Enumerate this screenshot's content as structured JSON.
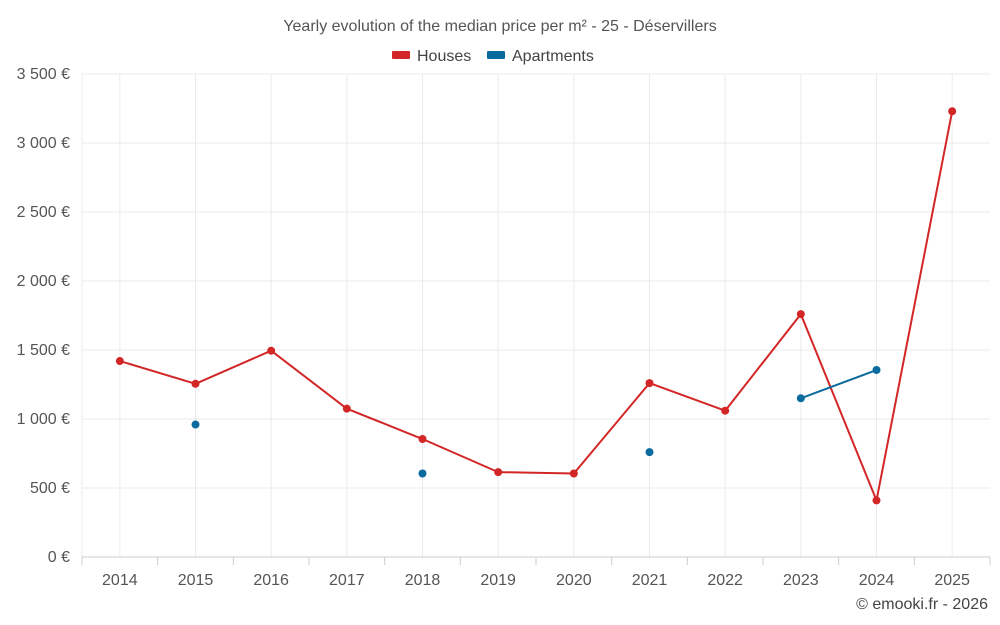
{
  "chart_data": {
    "type": "line",
    "title": "Yearly evolution of the median price per m² - 25 - Déservillers",
    "categories": [
      "2014",
      "2015",
      "2016",
      "2017",
      "2018",
      "2019",
      "2020",
      "2021",
      "2022",
      "2023",
      "2024",
      "2025"
    ],
    "series": [
      {
        "name": "Houses",
        "color": "#d32626",
        "values": [
          1420,
          1255,
          1495,
          1075,
          855,
          615,
          605,
          1260,
          1060,
          1760,
          410,
          3230
        ]
      },
      {
        "name": "Apartments",
        "color": "#0a6b9e",
        "values": [
          null,
          960,
          null,
          null,
          605,
          null,
          null,
          760,
          null,
          1150,
          1355,
          null
        ]
      }
    ],
    "y_ticks": [
      0,
      500,
      1000,
      1500,
      2000,
      2500,
      3000,
      3500
    ],
    "y_tick_labels": [
      "0 €",
      "500 €",
      "1 000 €",
      "1 500 €",
      "2 000 €",
      "2 500 €",
      "3 000 €",
      "3 500 €"
    ],
    "ylim": [
      0,
      3500
    ],
    "xlabel": "",
    "ylabel": "",
    "grid": true,
    "legend_position": "top-center"
  },
  "credit": "© emooki.fr - 2026"
}
